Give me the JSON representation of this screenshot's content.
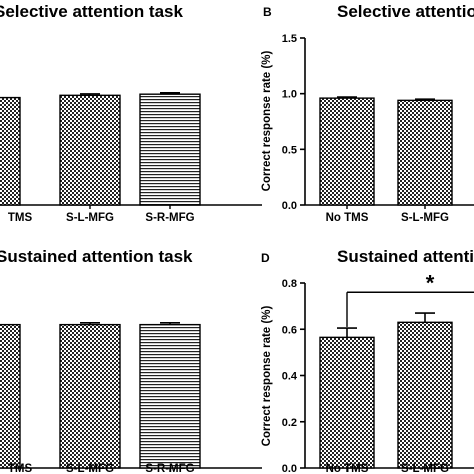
{
  "chart_data": [
    {
      "panel": "",
      "type": "bar",
      "title": "Selective attention task",
      "categories": [
        "TMS",
        "S-L-MFG",
        "S-R-MFG"
      ],
      "values": [
        0.95,
        0.97,
        0.98
      ],
      "errors": [
        0.01,
        0.012,
        0.012
      ],
      "patterns": [
        "checker",
        "checker",
        "hlines"
      ],
      "ylabel": "",
      "yticks": [],
      "ylim": [
        0,
        1.3
      ]
    },
    {
      "panel": "B",
      "type": "bar",
      "title": "Selective attention",
      "categories": [
        "No TMS",
        "S-L-MFG"
      ],
      "values": [
        0.96,
        0.94
      ],
      "errors": [
        0.01,
        0.01
      ],
      "patterns": [
        "checker",
        "checker"
      ],
      "ylabel": "Correct response rate (%)",
      "yticks": [
        "0.0",
        "0.5",
        "1.0",
        "1.5"
      ],
      "ylim": [
        0,
        1.5
      ]
    },
    {
      "panel": "",
      "type": "bar",
      "title": "Sustained attention task",
      "categories": [
        "TMS",
        "S-L-MFG",
        "S-R-MFG"
      ],
      "values": [
        0.62,
        0.62,
        0.62
      ],
      "errors": [
        0.008,
        0.008,
        0.008
      ],
      "patterns": [
        "checker",
        "checker",
        "hlines"
      ],
      "ylabel": "",
      "yticks": [],
      "ylim": [
        0,
        0.8
      ]
    },
    {
      "panel": "D",
      "type": "bar",
      "title": "Sustained attention",
      "categories": [
        "No TMS",
        "S-L-MFG"
      ],
      "values": [
        0.565,
        0.63
      ],
      "errors": [
        0.04,
        0.04
      ],
      "patterns": [
        "checker",
        "checker"
      ],
      "ylabel": "Correct response rate (%)",
      "yticks": [
        "0.0",
        "0.2",
        "0.4",
        "0.6",
        "0.8"
      ],
      "ylim": [
        0,
        0.8
      ],
      "annotation": "*"
    }
  ]
}
